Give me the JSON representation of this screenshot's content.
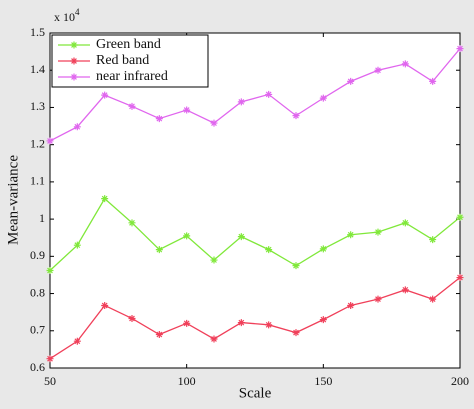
{
  "chart_data": {
    "type": "line",
    "x_label": "Scale",
    "y_label": "Mean-variance",
    "y_multiplier": "x 10",
    "y_multiplier_exponent": "4",
    "x": [
      50,
      60,
      70,
      80,
      90,
      100,
      110,
      120,
      130,
      140,
      150,
      160,
      170,
      180,
      190,
      200
    ],
    "series": [
      {
        "name": "Green band",
        "color": "#80e83a",
        "values": [
          0.862,
          0.93,
          1.055,
          0.99,
          0.918,
          0.955,
          0.89,
          0.953,
          0.918,
          0.875,
          0.92,
          0.958,
          0.965,
          0.99,
          0.945,
          1.005
        ]
      },
      {
        "name": "Red band",
        "color": "#f0405a",
        "values": [
          0.625,
          0.672,
          0.768,
          0.733,
          0.69,
          0.72,
          0.678,
          0.722,
          0.716,
          0.695,
          0.73,
          0.768,
          0.785,
          0.81,
          0.785,
          0.843
        ]
      },
      {
        "name": "near infrared",
        "color": "#e066ee",
        "values": [
          1.21,
          1.248,
          1.333,
          1.303,
          1.27,
          1.293,
          1.258,
          1.315,
          1.335,
          1.278,
          1.325,
          1.37,
          1.4,
          1.417,
          1.37,
          1.458
        ]
      }
    ],
    "xlim": [
      50,
      200
    ],
    "xticks": [
      50,
      100,
      150,
      200
    ],
    "ylim": [
      0.6,
      1.5
    ],
    "yticks": [
      0.6,
      0.7,
      0.8,
      0.9,
      1,
      1.1,
      1.2,
      1.3,
      1.4,
      1.5
    ],
    "grid": false,
    "legend": "upper-left"
  }
}
